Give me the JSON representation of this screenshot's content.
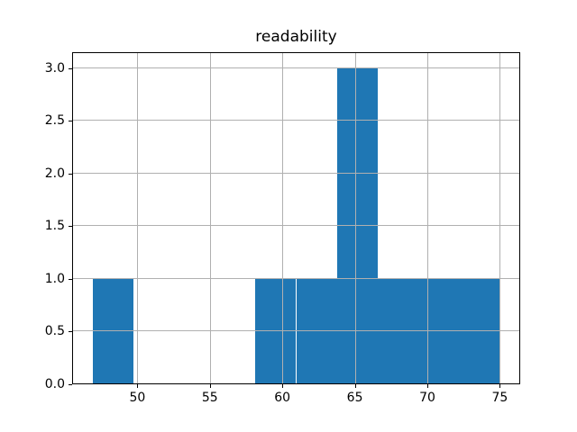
{
  "chart_data": {
    "type": "bar",
    "subtype": "histogram",
    "title": "readability",
    "bin_edges": [
      46.9,
      49.71,
      52.52,
      55.33,
      58.14,
      60.95,
      63.76,
      66.57,
      69.38,
      72.19,
      75.0
    ],
    "counts": [
      1,
      0,
      0,
      0,
      1,
      1,
      3,
      1,
      1,
      1
    ],
    "xticks": [
      50,
      55,
      60,
      65,
      70,
      75
    ],
    "xtick_labels": [
      "50",
      "55",
      "60",
      "65",
      "70",
      "75"
    ],
    "yticks": [
      0.0,
      0.5,
      1.0,
      1.5,
      2.0,
      2.5,
      3.0
    ],
    "ytick_labels": [
      "0.0",
      "0.5",
      "1.0",
      "1.5",
      "2.0",
      "2.5",
      "3.0"
    ],
    "xlim": [
      45.495,
      76.405
    ],
    "ylim": [
      0,
      3.15
    ],
    "xlabel": "",
    "ylabel": "",
    "grid": true,
    "legend": false,
    "bar_color": "#1f77b4",
    "grid_color": "#b0b0b0",
    "axis_color": "#000000",
    "background_color": "#ffffff"
  }
}
